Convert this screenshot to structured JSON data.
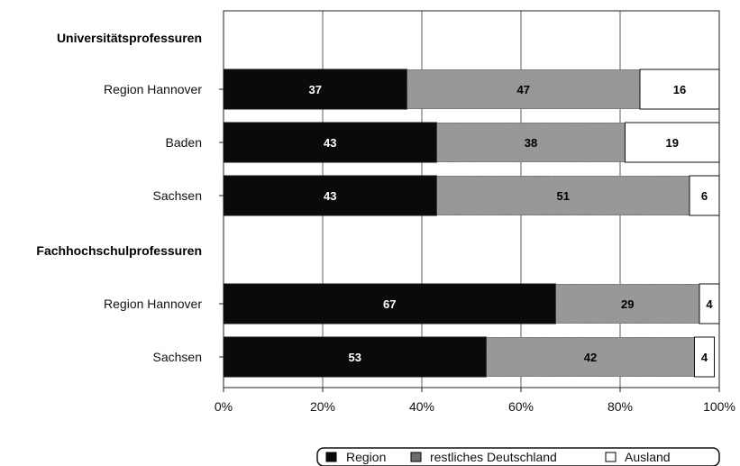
{
  "chart_data": {
    "type": "bar",
    "orientation": "horizontal",
    "stacked": true,
    "percent_stacked": true,
    "rows": [
      {
        "kind": "group",
        "label": "Universitätsprofessuren"
      },
      {
        "kind": "bar",
        "label": "Region Hannover",
        "values": [
          37,
          47,
          16
        ]
      },
      {
        "kind": "bar",
        "label": "Baden",
        "values": [
          43,
          38,
          19
        ]
      },
      {
        "kind": "bar",
        "label": "Sachsen",
        "values": [
          43,
          51,
          6
        ]
      },
      {
        "kind": "group",
        "label": "Fachhochschulprofessuren"
      },
      {
        "kind": "bar",
        "label": "Region Hannover",
        "values": [
          67,
          29,
          4
        ]
      },
      {
        "kind": "bar",
        "label": "Sachsen",
        "values": [
          53,
          42,
          4
        ]
      }
    ],
    "series": [
      {
        "name": "Region",
        "color": "#0a0a0a",
        "label_color": "#ffffff"
      },
      {
        "name": "restliches Deutschland",
        "color": "#8c8c8c",
        "label_color": "#000000"
      },
      {
        "name": "Ausland",
        "color": "#ffffff",
        "label_color": "#000000"
      }
    ],
    "xlim": [
      0,
      100
    ],
    "xticks": [
      "0%",
      "20%",
      "40%",
      "60%",
      "80%",
      "100%"
    ],
    "grid": true,
    "legend_position": "bottom-right"
  }
}
